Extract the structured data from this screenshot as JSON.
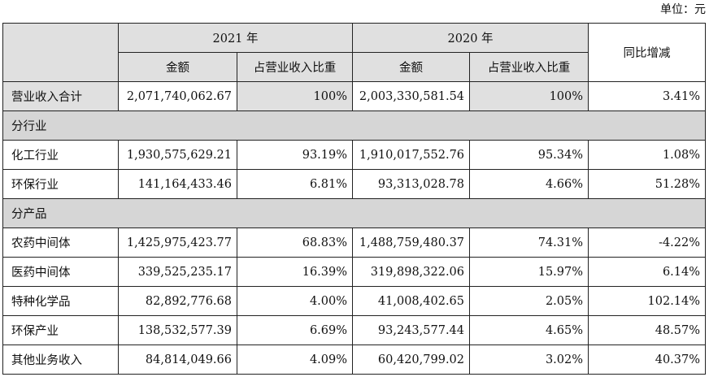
{
  "unit_label": "单位：元",
  "header": {
    "year_2021": "2021 年",
    "year_2020": "2020 年",
    "amount": "金额",
    "ratio": "占营业收入比重",
    "yoy": "同比增减"
  },
  "total": {
    "label": "营业收入合计",
    "amt2021": "2,071,740,062.67",
    "pct2021": "100%",
    "amt2020": "2,003,330,581.54",
    "pct2020": "100%",
    "yoy": "3.41%"
  },
  "section_industry": "分行业",
  "industry_rows": [
    {
      "label": "化工行业",
      "amt2021": "1,930,575,629.21",
      "pct2021": "93.19%",
      "amt2020": "1,910,017,552.76",
      "pct2020": "95.34%",
      "yoy": "1.08%"
    },
    {
      "label": "环保行业",
      "amt2021": "141,164,433.46",
      "pct2021": "6.81%",
      "amt2020": "93,313,028.78",
      "pct2020": "4.66%",
      "yoy": "51.28%"
    }
  ],
  "section_product": "分产品",
  "product_rows": [
    {
      "label": "农药中间体",
      "amt2021": "1,425,975,423.77",
      "pct2021": "68.83%",
      "amt2020": "1,488,759,480.37",
      "pct2020": "74.31%",
      "yoy": "-4.22%"
    },
    {
      "label": "医药中间体",
      "amt2021": "339,525,235.17",
      "pct2021": "16.39%",
      "amt2020": "319,898,322.06",
      "pct2020": "15.97%",
      "yoy": "6.14%"
    },
    {
      "label": "特种化学品",
      "amt2021": "82,892,776.68",
      "pct2021": "4.00%",
      "amt2020": "41,008,402.65",
      "pct2020": "2.05%",
      "yoy": "102.14%"
    },
    {
      "label": "环保产业",
      "amt2021": "138,532,577.39",
      "pct2021": "6.69%",
      "amt2020": "93,243,577.44",
      "pct2020": "4.65%",
      "yoy": "48.57%"
    },
    {
      "label": "其他业务收入",
      "amt2021": "84,814,049.66",
      "pct2021": "4.09%",
      "amt2020": "60,420,799.02",
      "pct2020": "3.02%",
      "yoy": "40.37%"
    }
  ]
}
